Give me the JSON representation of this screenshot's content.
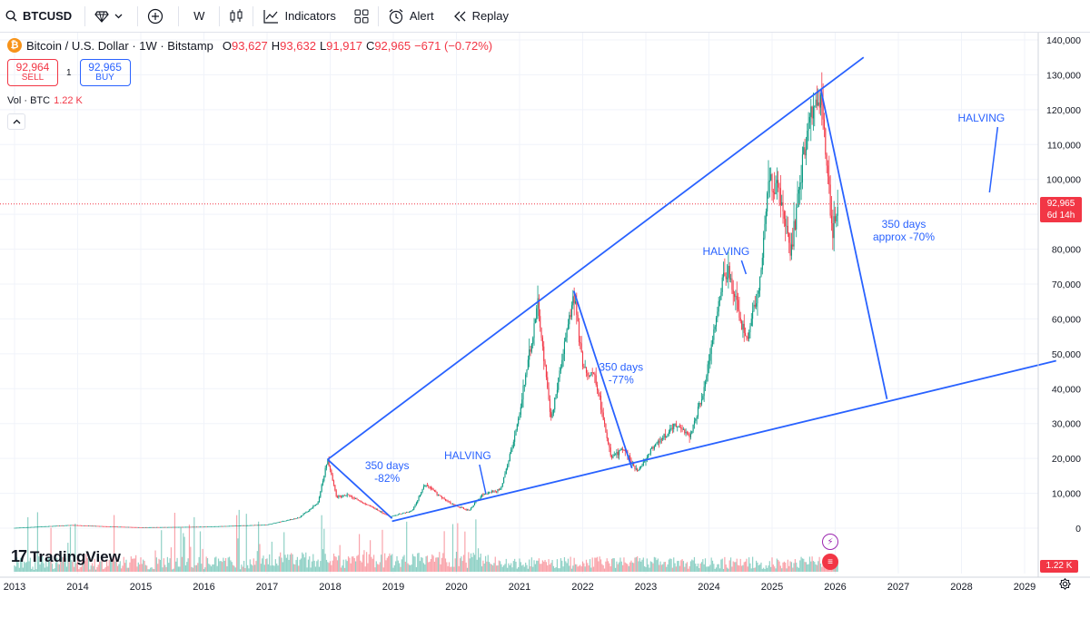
{
  "toolbar": {
    "symbol": "BTCUSD",
    "interval": "W",
    "indicators_label": "Indicators",
    "alert_label": "Alert",
    "replay_label": "Replay",
    "icons": [
      "search-icon",
      "diamond-icon",
      "chevron-down-icon",
      "plus-circle-icon",
      "candles-icon",
      "indicators-icon",
      "templates-icon",
      "alert-icon",
      "replay-icon"
    ]
  },
  "legend": {
    "title": "Bitcoin / U.S. Dollar · 1W · Bitstamp",
    "open_k": "O",
    "open_v": "93,627",
    "high_k": "H",
    "high_v": "93,632",
    "low_k": "L",
    "low_v": "91,917",
    "close_k": "C",
    "close_v": "92,965",
    "change": "−671 (−0.72%)"
  },
  "trade": {
    "sell_price": "92,964",
    "sell_label": "SELL",
    "qty": "1",
    "buy_price": "92,965",
    "buy_label": "BUY"
  },
  "volume": {
    "label": "Vol · BTC",
    "value": "1.22 K"
  },
  "price_tag": {
    "price": "92,965",
    "countdown": "6d 14h"
  },
  "vol_tag": "1.22 K",
  "brand": "TradingView",
  "colors": {
    "up": "#089981",
    "down": "#f23645",
    "drawing": "#2962ff",
    "grid": "#f0f3fa"
  },
  "chart_data": {
    "type": "candlestick",
    "symbol": "BTCUSD",
    "exchange": "Bitstamp",
    "interval": "1W",
    "x_ticks": [
      "2013",
      "2014",
      "2015",
      "2016",
      "2017",
      "2018",
      "2019",
      "2020",
      "2021",
      "2022",
      "2023",
      "2024",
      "2025",
      "2026",
      "2027",
      "2028",
      "2029"
    ],
    "y_ticks": [
      "140,000",
      "130,000",
      "120,000",
      "110,000",
      "100,000",
      "90,000",
      "80,000",
      "70,000",
      "60,000",
      "50,000",
      "40,000",
      "30,000",
      "20,000",
      "10,000",
      "0"
    ],
    "y_tick_values": [
      140000,
      130000,
      120000,
      110000,
      100000,
      90000,
      80000,
      70000,
      60000,
      50000,
      40000,
      30000,
      20000,
      10000,
      0
    ],
    "ylim": [
      0,
      140000
    ],
    "xlim": [
      2013.0,
      2029.5
    ],
    "last_price": 92965,
    "price_path": [
      [
        2013.0,
        100
      ],
      [
        2013.9,
        900
      ],
      [
        2014.5,
        500
      ],
      [
        2015.0,
        250
      ],
      [
        2016.0,
        430
      ],
      [
        2017.0,
        1000
      ],
      [
        2017.5,
        3000
      ],
      [
        2017.8,
        7000
      ],
      [
        2017.96,
        19700
      ],
      [
        2018.1,
        9000
      ],
      [
        2018.3,
        9500
      ],
      [
        2018.6,
        6500
      ],
      [
        2018.95,
        3300
      ],
      [
        2019.3,
        5000
      ],
      [
        2019.5,
        12500
      ],
      [
        2019.9,
        7200
      ],
      [
        2020.2,
        5000
      ],
      [
        2020.4,
        9500
      ],
      [
        2020.7,
        11000
      ],
      [
        2020.95,
        28000
      ],
      [
        2021.29,
        64000
      ],
      [
        2021.5,
        31000
      ],
      [
        2021.75,
        56000
      ],
      [
        2021.86,
        68000
      ],
      [
        2022.0,
        46000
      ],
      [
        2022.2,
        43000
      ],
      [
        2022.45,
        20000
      ],
      [
        2022.65,
        23000
      ],
      [
        2022.86,
        16000
      ],
      [
        2023.1,
        23000
      ],
      [
        2023.5,
        30000
      ],
      [
        2023.7,
        26000
      ],
      [
        2023.95,
        42000
      ],
      [
        2024.2,
        70000
      ],
      [
        2024.3,
        73000
      ],
      [
        2024.5,
        60000
      ],
      [
        2024.6,
        54000
      ],
      [
        2024.8,
        70000
      ],
      [
        2024.95,
        100000
      ],
      [
        2025.1,
        97000
      ],
      [
        2025.3,
        78000
      ],
      [
        2025.5,
        108000
      ],
      [
        2025.6,
        118000
      ],
      [
        2025.77,
        125000
      ],
      [
        2025.85,
        108000
      ],
      [
        2025.95,
        85000
      ],
      [
        2026.05,
        92965
      ]
    ],
    "drawings": {
      "upper_trendline": [
        [
          2017.96,
          19700
        ],
        [
          2026.45,
          135000
        ]
      ],
      "lower_trendline": [
        [
          2018.98,
          2000
        ],
        [
          2029.5,
          48000
        ]
      ],
      "falls": [
        {
          "from": [
            2017.96,
            19700
          ],
          "to": [
            2018.98,
            2800
          ],
          "label": "350 days\n-82%"
        },
        {
          "from": [
            2021.86,
            68000
          ],
          "to": [
            2022.78,
            17200
          ],
          "label": "350 days\n-77%"
        },
        {
          "from": [
            2025.77,
            126000
          ],
          "to": [
            2026.82,
            37000
          ],
          "label": "350 days\napprox -70%"
        }
      ],
      "halvings": [
        {
          "label": "HALVING",
          "x": 2020.25
        },
        {
          "label": "HALVING",
          "x": 2024.3
        },
        {
          "label": "HALVING",
          "x": 2028.3
        }
      ]
    }
  }
}
